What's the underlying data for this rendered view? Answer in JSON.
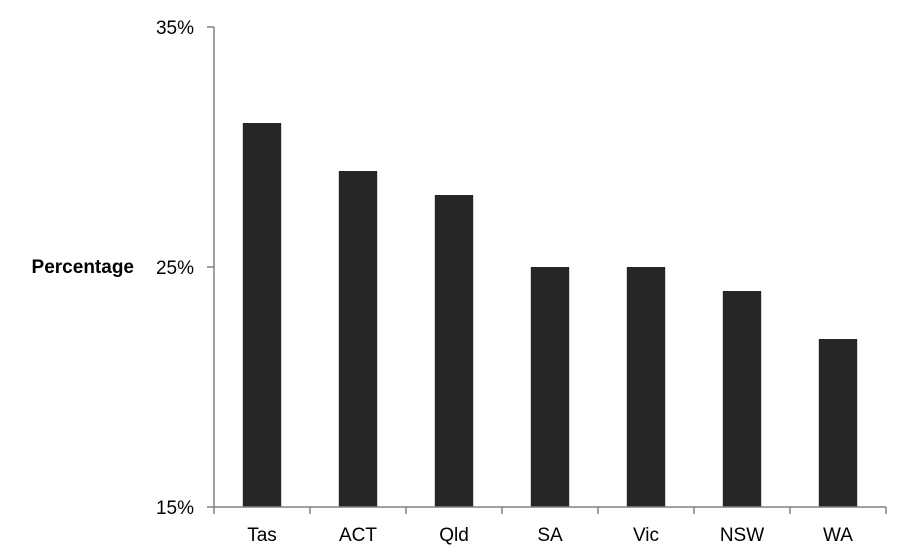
{
  "chart_data": {
    "type": "bar",
    "title": "",
    "xlabel": "",
    "ylabel": "Percentage",
    "categories": [
      "Tas",
      "ACT",
      "Qld",
      "SA",
      "Vic",
      "NSW",
      "WA"
    ],
    "values": [
      31,
      29,
      28,
      25,
      25,
      24,
      22
    ],
    "ylim": [
      15,
      35
    ],
    "yticks": [
      15,
      25,
      35
    ],
    "ytick_labels": [
      "15%",
      "25%",
      "35%"
    ],
    "grid": false,
    "legend": "none",
    "bar_color": "#262626",
    "axis_color": "#808080"
  }
}
